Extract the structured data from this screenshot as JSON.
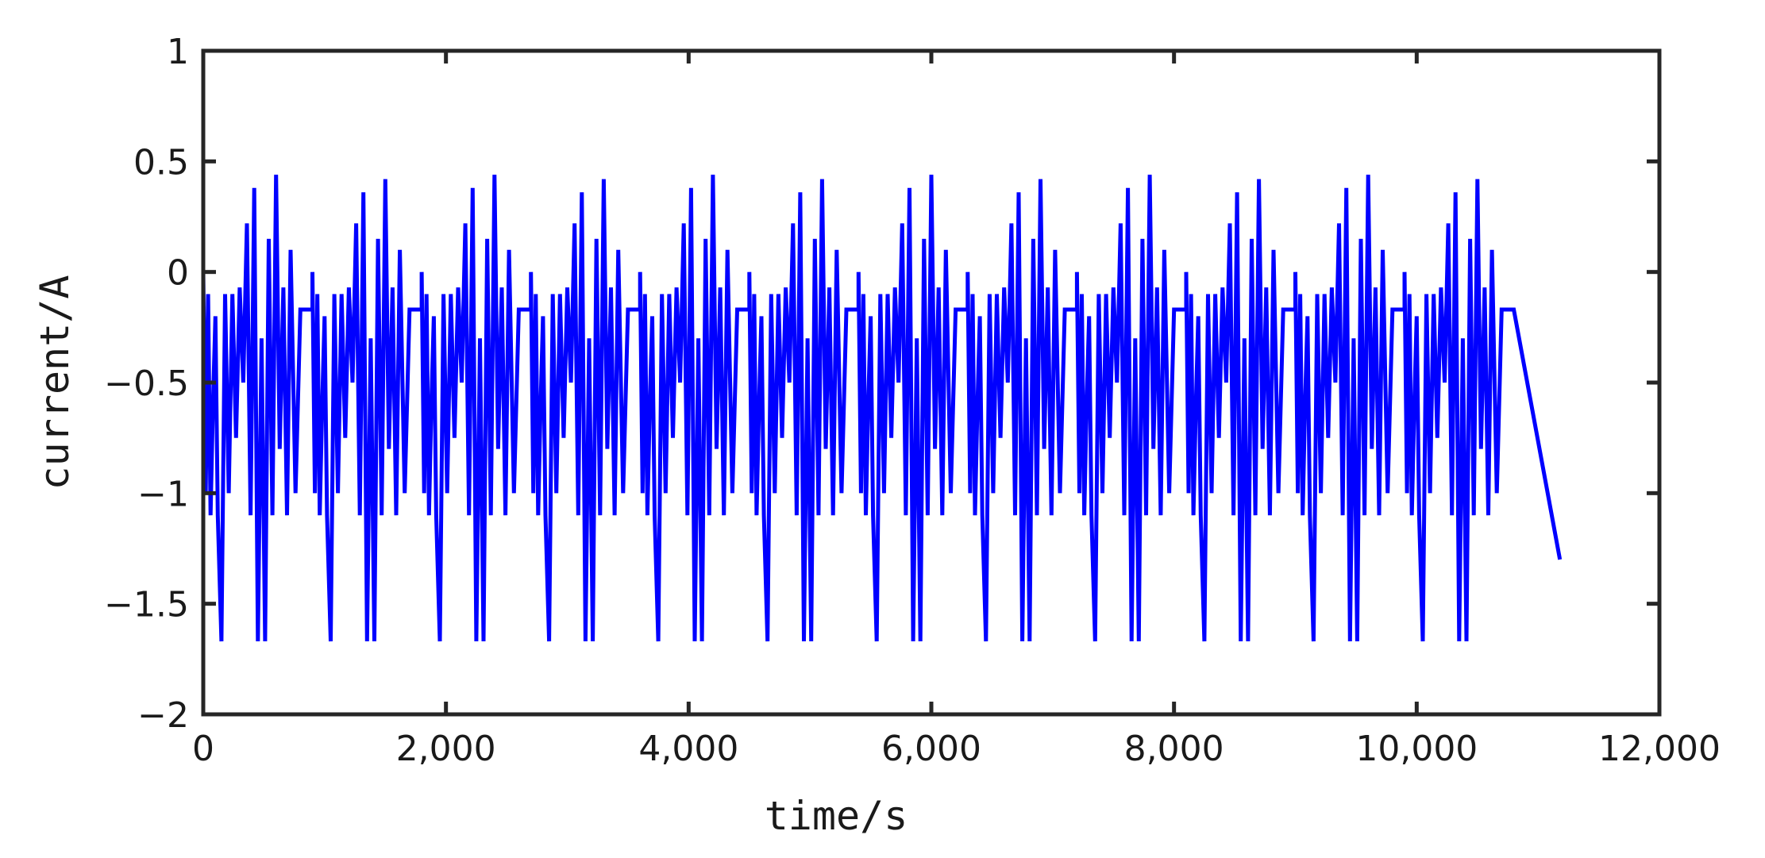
{
  "chart_data": {
    "type": "line",
    "title": "",
    "xlabel": "time/s",
    "ylabel": "current/A",
    "xlim": [
      0,
      12000
    ],
    "ylim": [
      -2,
      1
    ],
    "x_ticks": [
      0,
      2000,
      4000,
      6000,
      8000,
      10000,
      12000
    ],
    "x_tick_labels": [
      "0",
      "2,000",
      "4,000",
      "6,000",
      "8,000",
      "10,000",
      "12,000"
    ],
    "y_ticks": [
      -2,
      -1.5,
      -1,
      -0.5,
      0,
      0.5,
      1
    ],
    "y_tick_labels": [
      "−2",
      "−1.5",
      "−1",
      "−0.5",
      "0",
      "0.5",
      "1"
    ],
    "grid": false,
    "legend": "none",
    "line_color": "#0000ff",
    "series": [
      {
        "pattern": "repeating drive-cycle profile",
        "cycle_count": 12,
        "cycle_period_s": 900,
        "data_end_s": 11180,
        "rest_level": -0.17,
        "x": [
          0,
          20,
          40,
          60,
          80,
          100,
          120,
          150,
          180,
          210,
          240,
          270,
          300,
          330,
          360,
          390,
          420,
          450,
          480,
          510,
          540,
          570,
          600,
          630,
          660,
          690,
          720,
          760,
          800,
          850,
          900
        ],
        "y": [
          0,
          -1.0,
          -0.1,
          -1.1,
          -0.6,
          -0.2,
          -1.1,
          -1.67,
          -0.1,
          -1.0,
          -0.1,
          -0.75,
          -0.07,
          -0.5,
          0.22,
          -1.1,
          0.38,
          -1.67,
          -0.3,
          -1.67,
          0.15,
          -1.1,
          0.44,
          -0.8,
          -0.07,
          -1.1,
          0.1,
          -1.0,
          -0.17,
          -0.17,
          -0.17
        ]
      }
    ]
  }
}
